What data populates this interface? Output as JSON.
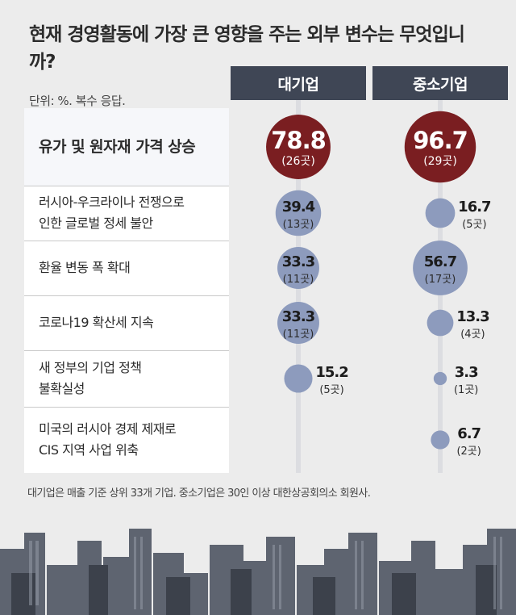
{
  "chart_data": {
    "type": "table",
    "title": "현재 경영활동에 가장 큰 영향을 주는 외부 변수는 무엇입니까?",
    "unit_note": "단위: %. 복수 응답.",
    "columns": [
      "대기업",
      "중소기업"
    ],
    "rows": [
      {
        "label_lines": [
          "유가 및 원자재 가격 상승"
        ],
        "large": {
          "value": 78.8,
          "count": "(26곳)"
        },
        "sme": {
          "value": 96.7,
          "count": "(29곳)"
        }
      },
      {
        "label_lines": [
          "러시아-우크라이나 전쟁으로",
          "인한 글로벌 정세 불안"
        ],
        "large": {
          "value": 39.4,
          "count": "(13곳)"
        },
        "sme": {
          "value": 16.7,
          "count": "(5곳)"
        }
      },
      {
        "label_lines": [
          "환율 변동 폭 확대"
        ],
        "large": {
          "value": 33.3,
          "count": "(11곳)"
        },
        "sme": {
          "value": 56.7,
          "count": "(17곳)"
        }
      },
      {
        "label_lines": [
          "코로나19 확산세 지속"
        ],
        "large": {
          "value": 33.3,
          "count": "(11곳)"
        },
        "sme": {
          "value": 13.3,
          "count": "(4곳)"
        }
      },
      {
        "label_lines": [
          "새 정부의 기업 정책",
          "불확실성"
        ],
        "large": {
          "value": 15.2,
          "count": "(5곳)"
        },
        "sme": {
          "value": 3.3,
          "count": "(1곳)"
        }
      },
      {
        "label_lines": [
          "미국의 러시아 경제 제재로",
          "CIS 지역 사업 위축"
        ],
        "large": null,
        "sme": {
          "value": 6.7,
          "count": "(2곳)"
        }
      }
    ],
    "footnote": "대기업은 매출 기준 상위 33개 기업. 중소기업은 30인 이상 대한상공회의소 회원사.",
    "colors": {
      "highlight_bubble": "#7a1e21",
      "bubble": "#8d9bbd",
      "header": "#3f4655",
      "background": "#ececec"
    }
  }
}
